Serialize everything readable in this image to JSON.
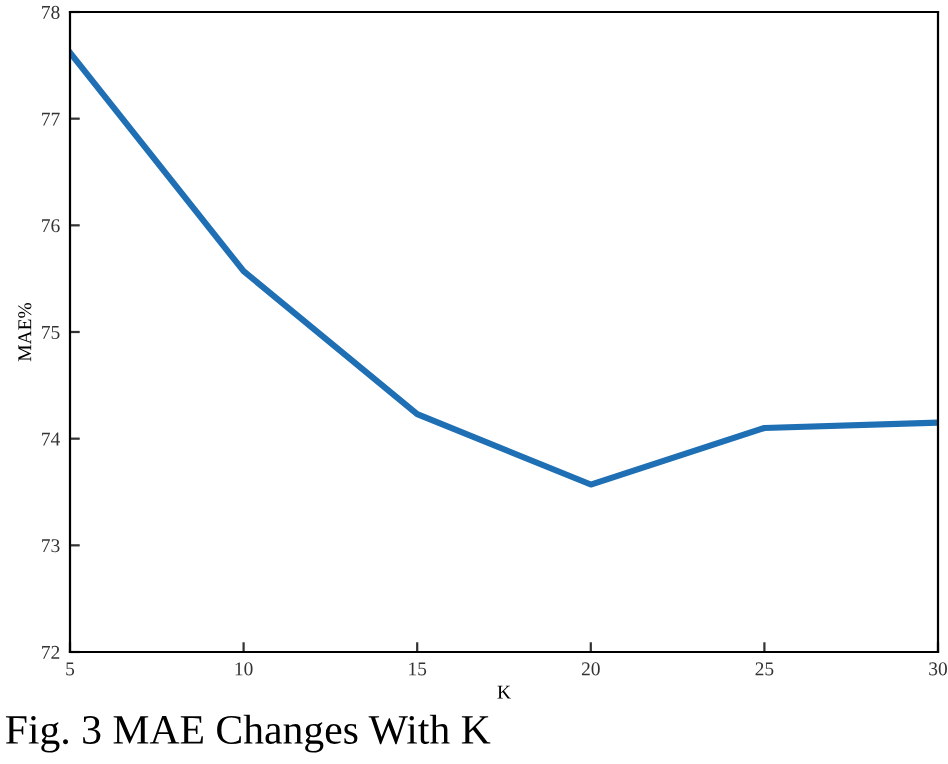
{
  "chart_data": {
    "type": "line",
    "xlabel": "K",
    "ylabel": "MAE%",
    "x": [
      5,
      10,
      15,
      20,
      25,
      30
    ],
    "series": [
      {
        "color": "#1f6fb4",
        "values": [
          77.62,
          75.57,
          74.23,
          73.57,
          74.1,
          74.15
        ]
      }
    ],
    "xlim": [
      5,
      30
    ],
    "xticks": [
      5,
      10,
      15,
      20,
      25,
      30
    ],
    "ylim": [
      72,
      78
    ],
    "yticks": [
      72,
      73,
      74,
      75,
      76,
      77,
      78
    ],
    "grid": false,
    "marker": "none",
    "line_style": "solid",
    "annotations": [
      "Fig. 3 MAE Changes With K"
    ]
  }
}
